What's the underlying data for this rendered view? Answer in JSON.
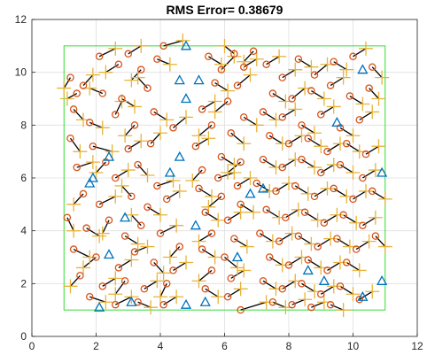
{
  "chart_data": {
    "type": "scatter",
    "title": "RMS Error= 0.38679",
    "xlabel": "",
    "ylabel": "",
    "xlim": [
      0,
      12
    ],
    "ylim": [
      0,
      12
    ],
    "xticks": [
      "0",
      "2",
      "4",
      "6",
      "8",
      "10",
      "12"
    ],
    "yticks": [
      "0",
      "2",
      "4",
      "6",
      "8",
      "10",
      "12"
    ],
    "grid": true,
    "boundary": {
      "x": [
        1,
        11
      ],
      "y": [
        1,
        11
      ],
      "color": "#33dd33"
    },
    "colors": {
      "estimate": "#e8b339",
      "true_position": "#d95319",
      "error_line": "#000000",
      "anchor": "#0072bd"
    },
    "anchors": [
      [
        4.8,
        11.0
      ],
      [
        4.6,
        9.7
      ],
      [
        5.2,
        9.7
      ],
      [
        4.8,
        9.0
      ],
      [
        10.3,
        10.1
      ],
      [
        9.5,
        8.1
      ],
      [
        4.3,
        6.2
      ],
      [
        4.6,
        6.8
      ],
      [
        2.4,
        6.8
      ],
      [
        1.9,
        6.0
      ],
      [
        1.8,
        5.8
      ],
      [
        2.9,
        4.5
      ],
      [
        2.4,
        3.1
      ],
      [
        5.1,
        4.2
      ],
      [
        6.4,
        3.0
      ],
      [
        6.8,
        5.4
      ],
      [
        7.2,
        5.6
      ],
      [
        9.1,
        2.1
      ],
      [
        8.6,
        2.5
      ],
      [
        10.3,
        1.5
      ],
      [
        10.9,
        2.1
      ],
      [
        10.9,
        6.2
      ],
      [
        5.4,
        1.3
      ],
      [
        2.1,
        1.1
      ],
      [
        4.8,
        1.2
      ],
      [
        3.1,
        1.3
      ]
    ],
    "points": [
      [
        1.2,
        9.8,
        1.0,
        9.4
      ],
      [
        1.6,
        9.5,
        1.9,
        9.9
      ],
      [
        1.4,
        9.2,
        1.1,
        9.0
      ],
      [
        2.1,
        10.6,
        2.6,
        10.9
      ],
      [
        2.7,
        10.3,
        2.3,
        10.0
      ],
      [
        3.0,
        10.7,
        3.4,
        11.0
      ],
      [
        3.4,
        10.1,
        3.1,
        9.7
      ],
      [
        3.9,
        10.5,
        4.3,
        10.3
      ],
      [
        4.1,
        11.0,
        4.7,
        11.2
      ],
      [
        2.2,
        9.2,
        1.8,
        9.4
      ],
      [
        2.8,
        9.0,
        3.2,
        8.7
      ],
      [
        3.6,
        9.4,
        3.3,
        9.8
      ],
      [
        1.3,
        8.6,
        1.6,
        8.2
      ],
      [
        1.8,
        8.1,
        2.2,
        7.9
      ],
      [
        2.6,
        8.4,
        2.8,
        8.9
      ],
      [
        3.2,
        8.0,
        2.9,
        7.6
      ],
      [
        3.8,
        8.5,
        4.2,
        8.2
      ],
      [
        1.2,
        7.5,
        1.5,
        7.0
      ],
      [
        1.9,
        7.2,
        2.5,
        7.0
      ],
      [
        2.3,
        6.6,
        2.0,
        6.2
      ],
      [
        3.0,
        7.1,
        3.4,
        7.4
      ],
      [
        3.7,
        7.3,
        4.0,
        7.7
      ],
      [
        4.4,
        7.9,
        4.8,
        8.3
      ],
      [
        1.4,
        6.4,
        1.9,
        6.6
      ],
      [
        2.6,
        6.0,
        3.0,
        6.3
      ],
      [
        3.3,
        6.5,
        3.6,
        6.1
      ],
      [
        3.9,
        5.7,
        4.4,
        5.9
      ],
      [
        1.6,
        5.4,
        1.3,
        5.0
      ],
      [
        2.1,
        5.0,
        2.6,
        5.3
      ],
      [
        3.1,
        5.3,
        2.8,
        5.7
      ],
      [
        3.6,
        4.9,
        4.0,
        4.6
      ],
      [
        4.2,
        5.2,
        4.6,
        5.5
      ],
      [
        1.1,
        4.5,
        1.3,
        4.0
      ],
      [
        1.7,
        4.1,
        2.1,
        3.8
      ],
      [
        2.4,
        4.4,
        2.2,
        3.9
      ],
      [
        2.9,
        3.8,
        3.3,
        3.5
      ],
      [
        3.4,
        4.2,
        3.1,
        4.6
      ],
      [
        4.0,
        3.9,
        4.5,
        4.2
      ],
      [
        4.6,
        3.4,
        4.3,
        3.0
      ],
      [
        1.3,
        3.3,
        1.8,
        3.0
      ],
      [
        2.0,
        3.0,
        1.6,
        2.6
      ],
      [
        2.7,
        2.6,
        3.1,
        2.9
      ],
      [
        3.2,
        3.2,
        3.6,
        3.4
      ],
      [
        3.8,
        2.8,
        4.1,
        2.4
      ],
      [
        4.4,
        2.5,
        4.8,
        2.8
      ],
      [
        1.5,
        2.3,
        1.2,
        1.9
      ],
      [
        2.2,
        1.9,
        2.6,
        2.2
      ],
      [
        2.9,
        2.1,
        2.6,
        1.6
      ],
      [
        3.5,
        1.8,
        3.9,
        2.1
      ],
      [
        4.2,
        2.0,
        4.0,
        1.5
      ],
      [
        1.8,
        1.5,
        2.3,
        1.3
      ],
      [
        2.6,
        1.2,
        3.1,
        1.5
      ],
      [
        3.3,
        1.3,
        3.7,
        1.1
      ],
      [
        4.1,
        1.2,
        4.5,
        1.5
      ],
      [
        5.5,
        10.6,
        5.9,
        10.3
      ],
      [
        5.9,
        10.1,
        6.3,
        10.6
      ],
      [
        6.3,
        10.7,
        6.0,
        11.0
      ],
      [
        6.6,
        10.2,
        7.0,
        10.5
      ],
      [
        6.9,
        10.8,
        6.6,
        10.4
      ],
      [
        5.7,
        9.6,
        6.1,
        9.3
      ],
      [
        6.4,
        9.5,
        6.8,
        9.9
      ],
      [
        6.1,
        8.9,
        5.7,
        8.5
      ],
      [
        5.3,
        8.6,
        5.7,
        8.9
      ],
      [
        6.6,
        8.3,
        7.0,
        8.0
      ],
      [
        5.6,
        8.0,
        5.2,
        7.6
      ],
      [
        6.2,
        7.7,
        6.6,
        7.3
      ],
      [
        5.1,
        7.2,
        5.5,
        7.5
      ],
      [
        5.9,
        6.8,
        6.3,
        6.5
      ],
      [
        6.5,
        6.6,
        6.1,
        6.2
      ],
      [
        5.3,
        6.3,
        5.0,
        5.9
      ],
      [
        5.8,
        6.0,
        6.3,
        6.2
      ],
      [
        6.4,
        5.7,
        6.8,
        6.0
      ],
      [
        5.2,
        5.6,
        5.6,
        5.3
      ],
      [
        5.9,
        5.3,
        5.5,
        4.9
      ],
      [
        6.5,
        5.0,
        6.9,
        4.7
      ],
      [
        5.4,
        4.7,
        5.8,
        4.4
      ],
      [
        6.1,
        4.4,
        6.5,
        4.7
      ],
      [
        5.6,
        3.9,
        5.2,
        3.6
      ],
      [
        6.3,
        3.7,
        6.7,
        3.4
      ],
      [
        5.3,
        3.3,
        5.7,
        3.0
      ],
      [
        6.0,
        3.0,
        6.4,
        2.6
      ],
      [
        5.6,
        2.5,
        5.2,
        2.1
      ],
      [
        6.2,
        2.2,
        6.6,
        2.5
      ],
      [
        5.4,
        1.8,
        5.8,
        1.5
      ],
      [
        6.1,
        1.5,
        6.5,
        1.8
      ],
      [
        6.5,
        1.0,
        7.3,
        1.3
      ],
      [
        7.3,
        10.3,
        7.7,
        10.6
      ],
      [
        7.8,
        9.8,
        8.2,
        10.1
      ],
      [
        8.3,
        10.5,
        8.7,
        10.2
      ],
      [
        8.8,
        9.9,
        9.2,
        10.3
      ],
      [
        9.4,
        10.4,
        9.8,
        10.1
      ],
      [
        10.0,
        10.6,
        10.4,
        10.9
      ],
      [
        10.6,
        10.2,
        10.9,
        9.8
      ],
      [
        7.5,
        9.2,
        7.9,
        8.9
      ],
      [
        8.1,
        9.0,
        8.5,
        9.4
      ],
      [
        8.7,
        9.3,
        9.1,
        9.0
      ],
      [
        9.3,
        9.5,
        9.7,
        9.8
      ],
      [
        9.9,
        9.1,
        10.3,
        8.8
      ],
      [
        10.5,
        9.4,
        10.8,
        9.0
      ],
      [
        7.2,
        8.5,
        7.6,
        8.2
      ],
      [
        7.8,
        8.3,
        8.2,
        8.6
      ],
      [
        8.4,
        8.0,
        8.8,
        7.7
      ],
      [
        9.0,
        8.4,
        9.4,
        8.7
      ],
      [
        9.6,
        7.9,
        10.0,
        7.6
      ],
      [
        10.2,
        8.2,
        10.6,
        8.5
      ],
      [
        7.4,
        7.6,
        7.8,
        7.3
      ],
      [
        8.0,
        7.3,
        8.4,
        7.6
      ],
      [
        8.6,
        7.5,
        9.0,
        7.2
      ],
      [
        9.2,
        7.0,
        9.6,
        7.3
      ],
      [
        9.8,
        7.3,
        10.2,
        7.0
      ],
      [
        10.4,
        6.9,
        10.8,
        7.2
      ],
      [
        7.2,
        6.7,
        7.6,
        6.4
      ],
      [
        7.8,
        6.4,
        8.2,
        6.7
      ],
      [
        8.4,
        6.7,
        8.8,
        6.4
      ],
      [
        9.0,
        6.2,
        9.4,
        6.5
      ],
      [
        9.6,
        6.5,
        10.0,
        6.2
      ],
      [
        10.3,
        6.0,
        10.7,
        6.3
      ],
      [
        7.0,
        5.8,
        7.4,
        5.5
      ],
      [
        7.6,
        5.5,
        8.0,
        5.8
      ],
      [
        8.2,
        5.7,
        8.6,
        5.4
      ],
      [
        8.8,
        5.3,
        9.2,
        5.6
      ],
      [
        9.4,
        5.6,
        9.8,
        5.3
      ],
      [
        10.0,
        5.2,
        10.4,
        5.5
      ],
      [
        10.6,
        5.5,
        11.0,
        5.2
      ],
      [
        7.3,
        4.8,
        7.7,
        4.5
      ],
      [
        7.9,
        4.5,
        8.3,
        4.8
      ],
      [
        8.5,
        4.7,
        8.9,
        4.4
      ],
      [
        9.1,
        4.3,
        9.5,
        4.6
      ],
      [
        9.7,
        4.6,
        10.1,
        4.3
      ],
      [
        10.3,
        4.2,
        10.7,
        4.5
      ],
      [
        7.1,
        3.9,
        7.5,
        3.6
      ],
      [
        7.7,
        3.6,
        8.1,
        3.9
      ],
      [
        8.3,
        3.8,
        8.7,
        3.5
      ],
      [
        8.9,
        3.4,
        9.3,
        3.7
      ],
      [
        9.5,
        3.7,
        9.9,
        3.4
      ],
      [
        10.1,
        3.3,
        10.5,
        3.6
      ],
      [
        10.7,
        3.8,
        11.0,
        3.4
      ],
      [
        7.4,
        3.0,
        7.8,
        2.7
      ],
      [
        8.0,
        2.7,
        8.4,
        3.0
      ],
      [
        8.6,
        2.9,
        9.0,
        2.6
      ],
      [
        9.2,
        2.5,
        9.6,
        2.8
      ],
      [
        9.8,
        2.8,
        10.2,
        2.5
      ],
      [
        7.2,
        2.1,
        7.6,
        1.8
      ],
      [
        7.8,
        1.8,
        8.2,
        2.1
      ],
      [
        8.4,
        2.0,
        8.8,
        1.7
      ],
      [
        9.0,
        1.6,
        9.4,
        1.9
      ],
      [
        9.6,
        1.9,
        10.0,
        1.6
      ],
      [
        10.2,
        1.4,
        10.6,
        1.7
      ],
      [
        7.5,
        1.3,
        7.9,
        1.1
      ],
      [
        8.1,
        1.2,
        8.5,
        1.4
      ],
      [
        8.7,
        1.1,
        9.1,
        1.3
      ],
      [
        9.3,
        1.2,
        9.7,
        1.0
      ]
    ]
  }
}
